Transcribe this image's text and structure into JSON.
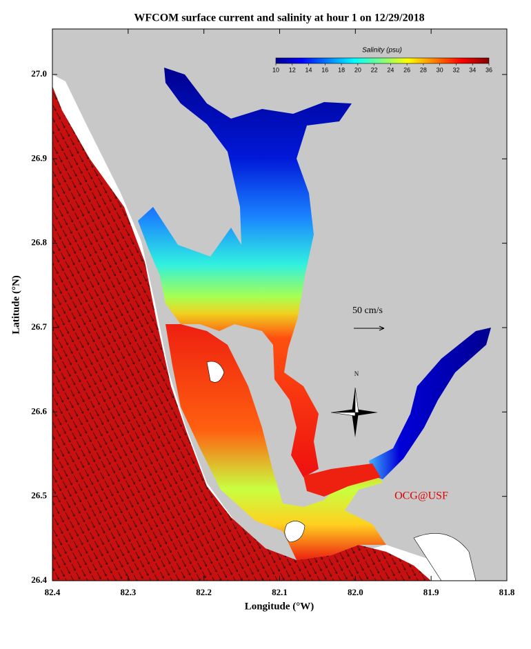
{
  "title": "WFCOM surface current and salinity at hour 1 on 12/29/2018",
  "x_axis": {
    "label": "Longitude (°W)",
    "ticks": [
      {
        "value": 82.4,
        "label": "82.4"
      },
      {
        "value": 82.3,
        "label": "82.3"
      },
      {
        "value": 82.2,
        "label": "82.2"
      },
      {
        "value": 82.1,
        "label": "82.1"
      },
      {
        "value": 82.0,
        "label": "82.0"
      },
      {
        "value": 81.9,
        "label": "81.9"
      },
      {
        "value": 81.8,
        "label": "81.8"
      }
    ]
  },
  "y_axis": {
    "label": "Latitude (°N)",
    "ticks": [
      {
        "value": 26.4,
        "label": "26.4"
      },
      {
        "value": 26.5,
        "label": "26.5"
      },
      {
        "value": 26.6,
        "label": "26.6"
      },
      {
        "value": 26.7,
        "label": "26.7"
      },
      {
        "value": 26.8,
        "label": "26.8"
      },
      {
        "value": 26.9,
        "label": "26.9"
      },
      {
        "value": 27.0,
        "label": "27.0"
      }
    ]
  },
  "colorbar": {
    "title": "Salinity (psu)",
    "ticks": [
      10,
      12,
      14,
      16,
      18,
      20,
      22,
      24,
      26,
      28,
      30,
      32,
      34,
      36
    ]
  },
  "annotations": {
    "scale": "50 cm/s",
    "credit": "OCG@USF",
    "north": "N"
  }
}
